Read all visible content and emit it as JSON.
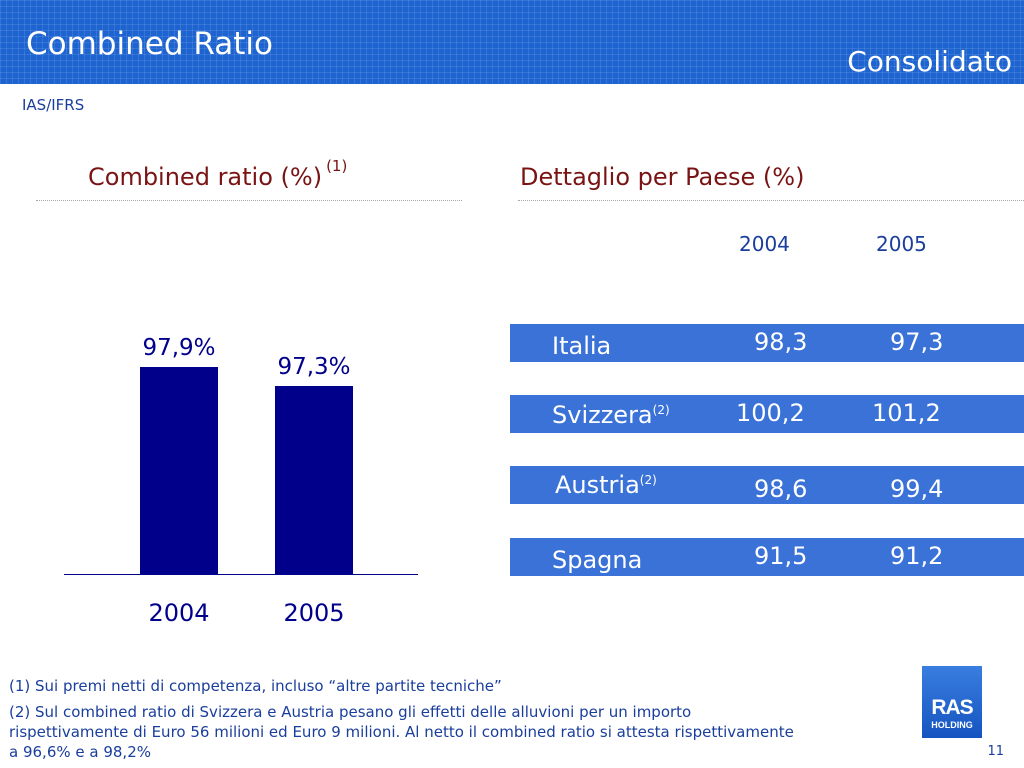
{
  "header": {
    "title": "Combined Ratio",
    "subtitle": "Consolidato",
    "standard": "IAS/IFRS"
  },
  "left_section": {
    "title": "Combined ratio (%)",
    "footnote_ref": "(1)"
  },
  "right_section": {
    "title": "Dettaglio per Paese (%)",
    "years": [
      "2004",
      "2005"
    ],
    "rows": [
      {
        "country": "Italia",
        "note": "",
        "v2004": "98,3",
        "v2005": "97,3"
      },
      {
        "country": "Svizzera",
        "note": "(2)",
        "v2004": "100,2",
        "v2005": "101,2"
      },
      {
        "country": "Austria",
        "note": "(2)",
        "v2004": "98,6",
        "v2005": "99,4"
      },
      {
        "country": "Spagna",
        "note": "",
        "v2004": "91,5",
        "v2005": "91,2"
      }
    ]
  },
  "chart_data": [
    {
      "type": "bar",
      "title": "Combined ratio (%)",
      "categories": [
        "2004",
        "2005"
      ],
      "values": [
        97.9,
        97.3
      ],
      "data_labels": [
        "97,9%",
        "97,3%"
      ],
      "color": "#00008b",
      "grid": false
    },
    {
      "type": "table",
      "title": "Dettaglio per Paese (%)",
      "columns": [
        "2004",
        "2005"
      ],
      "rows": [
        {
          "name": "Italia",
          "values": [
            98.3,
            97.3
          ]
        },
        {
          "name": "Svizzera",
          "values": [
            100.2,
            101.2
          ]
        },
        {
          "name": "Austria",
          "values": [
            98.6,
            99.4
          ]
        },
        {
          "name": "Spagna",
          "values": [
            91.5,
            91.2
          ]
        }
      ]
    }
  ],
  "footnotes": [
    "(1) Sui premi netti di competenza, incluso “altre partite tecniche”",
    "(2) Sul combined ratio di Svizzera e Austria pesano gli effetti delle alluvioni per un importo",
    "rispettivamente di Euro 56 milioni ed Euro 9 milioni. Al netto il combined ratio si attesta rispettivamente",
    "a 96,6% e a 98,2%"
  ],
  "logo": {
    "line1": "RAS",
    "line2": "HOLDING"
  },
  "page_number": "11",
  "colors": {
    "header": "#1e64d0",
    "bar": "#00008b",
    "row": "#3a72d8",
    "heading": "#7a1414",
    "text": "#1a3e9c"
  }
}
